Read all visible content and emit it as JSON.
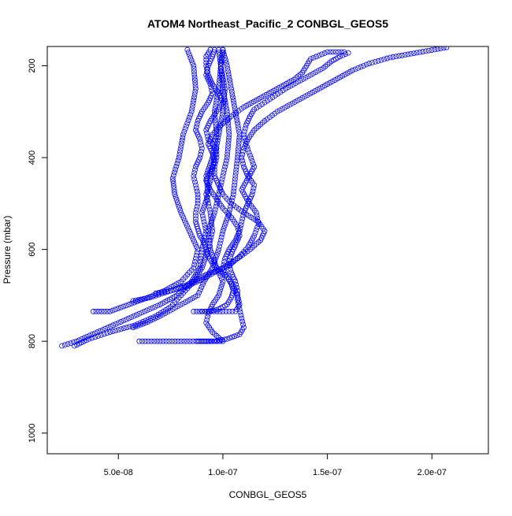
{
  "chart_data": {
    "type": "scatter",
    "title": "ATOM4 Northeast_Pacific_2 CONBGL_GEOS5",
    "xlabel": "CONBGL_GEOS5",
    "ylabel": "Pressure (mbar)",
    "xlim": [
      1.6e-08,
      2.27e-07
    ],
    "ylim": [
      1045,
      158
    ],
    "y_reversed": true,
    "grid": false,
    "point_color": "#0000ff",
    "x_ticks": [
      {
        "value": 5e-08,
        "label": "5.0e-08"
      },
      {
        "value": 1e-07,
        "label": "1.0e-07"
      },
      {
        "value": 1.5e-07,
        "label": "1.5e-07"
      },
      {
        "value": 2e-07,
        "label": "2.0e-07"
      }
    ],
    "y_ticks": [
      {
        "value": 200,
        "label": "200"
      },
      {
        "value": 400,
        "label": "400"
      },
      {
        "value": 600,
        "label": "600"
      },
      {
        "value": 800,
        "label": "800"
      },
      {
        "value": 1000,
        "label": "1000"
      }
    ],
    "series": [
      {
        "points": [
          [
            2.3e-08,
            810
          ],
          [
            3e-08,
            800
          ],
          [
            4e-08,
            780
          ],
          [
            5e-08,
            760
          ],
          [
            6e-08,
            740
          ],
          [
            7e-08,
            720
          ],
          [
            7.8e-08,
            700
          ],
          [
            8.5e-08,
            670
          ],
          [
            8.9e-08,
            640
          ],
          [
            9e-08,
            600
          ],
          [
            9.2e-08,
            560
          ],
          [
            9e-08,
            520
          ],
          [
            9.3e-08,
            480
          ],
          [
            9.2e-08,
            440
          ],
          [
            9.5e-08,
            400
          ],
          [
            9.7e-08,
            350
          ],
          [
            9.6e-08,
            300
          ],
          [
            9.8e-08,
            250
          ],
          [
            9.9e-08,
            200
          ],
          [
            1e-07,
            165
          ]
        ]
      },
      {
        "points": [
          [
            3.8e-08,
            735
          ],
          [
            4.6e-08,
            735
          ],
          [
            5.5e-08,
            720
          ],
          [
            6.4e-08,
            705
          ],
          [
            7.2e-08,
            690
          ],
          [
            8e-08,
            670
          ],
          [
            8.6e-08,
            640
          ],
          [
            8.8e-08,
            600
          ],
          [
            8.4e-08,
            560
          ],
          [
            8e-08,
            520
          ],
          [
            7.7e-08,
            480
          ],
          [
            7.6e-08,
            445
          ],
          [
            7.9e-08,
            400
          ],
          [
            8.1e-08,
            350
          ],
          [
            8.5e-08,
            300
          ],
          [
            8.7e-08,
            250
          ],
          [
            8.6e-08,
            200
          ],
          [
            8.3e-08,
            165
          ]
        ]
      },
      {
        "points": [
          [
            2.9e-08,
            810
          ],
          [
            3.6e-08,
            795
          ],
          [
            4.6e-08,
            780
          ],
          [
            5.8e-08,
            765
          ],
          [
            6.8e-08,
            745
          ],
          [
            7.5e-08,
            725
          ],
          [
            8e-08,
            700
          ],
          [
            8.6e-08,
            670
          ],
          [
            9e-08,
            640
          ],
          [
            9.3e-08,
            600
          ],
          [
            9.5e-08,
            560
          ],
          [
            9.4e-08,
            520
          ],
          [
            9.2e-08,
            480
          ],
          [
            9.4e-08,
            450
          ],
          [
            9.6e-08,
            400
          ],
          [
            9.8e-08,
            350
          ],
          [
            1e-07,
            300
          ],
          [
            1.01e-07,
            250
          ],
          [
            9.9e-08,
            200
          ],
          [
            9.8e-08,
            165
          ]
        ]
      },
      {
        "points": [
          [
            6e-08,
            800
          ],
          [
            7e-08,
            800
          ],
          [
            8e-08,
            800
          ],
          [
            9e-08,
            800
          ],
          [
            1e-07,
            800
          ],
          [
            9.5e-08,
            780
          ],
          [
            9.2e-08,
            760
          ],
          [
            9.3e-08,
            740
          ],
          [
            9.5e-08,
            720
          ],
          [
            9.8e-08,
            700
          ],
          [
            1e-07,
            670
          ],
          [
            9.7e-08,
            640
          ],
          [
            9.4e-08,
            600
          ],
          [
            9.3e-08,
            560
          ],
          [
            9.6e-08,
            520
          ],
          [
            9.8e-08,
            480
          ],
          [
            1e-07,
            440
          ],
          [
            1.02e-07,
            400
          ],
          [
            1.03e-07,
            350
          ],
          [
            1.02e-07,
            300
          ],
          [
            1e-07,
            250
          ],
          [
            9.9e-08,
            200
          ],
          [
            1e-07,
            165
          ]
        ]
      },
      {
        "points": [
          [
            5.7e-08,
            770
          ],
          [
            6.3e-08,
            760
          ],
          [
            7e-08,
            745
          ],
          [
            7.6e-08,
            730
          ],
          [
            8.2e-08,
            715
          ],
          [
            8.8e-08,
            700
          ],
          [
            9.1e-08,
            670
          ],
          [
            9.5e-08,
            640
          ],
          [
            9.8e-08,
            600
          ],
          [
            1e-07,
            560
          ],
          [
            1.03e-07,
            520
          ],
          [
            1.05e-07,
            480
          ],
          [
            1.06e-07,
            440
          ],
          [
            1.07e-07,
            400
          ],
          [
            1.08e-07,
            350
          ],
          [
            1.06e-07,
            300
          ],
          [
            1.04e-07,
            250
          ],
          [
            1.02e-07,
            200
          ],
          [
            1e-07,
            165
          ]
        ]
      },
      {
        "points": [
          [
            5.7e-08,
            712
          ],
          [
            6.5e-08,
            705
          ],
          [
            7.5e-08,
            690
          ],
          [
            8.4e-08,
            675
          ],
          [
            9.2e-08,
            655
          ],
          [
            1e-07,
            640
          ],
          [
            1.07e-07,
            620
          ],
          [
            1.13e-07,
            600
          ],
          [
            1.18e-07,
            580
          ],
          [
            1.2e-07,
            560
          ],
          [
            1.17e-07,
            540
          ],
          [
            1.1e-07,
            520
          ],
          [
            1.04e-07,
            500
          ],
          [
            1e-07,
            480
          ],
          [
            9.8e-08,
            460
          ],
          [
            9.6e-08,
            440
          ],
          [
            9.6e-08,
            420
          ],
          [
            9.7e-08,
            400
          ],
          [
            9.7e-08,
            380
          ],
          [
            9.3e-08,
            360
          ],
          [
            9.2e-08,
            340
          ],
          [
            9.4e-08,
            320
          ],
          [
            9.7e-08,
            300
          ],
          [
            1e-07,
            280
          ],
          [
            9.8e-08,
            260
          ],
          [
            9.5e-08,
            240
          ],
          [
            9.3e-08,
            220
          ],
          [
            9.2e-08,
            200
          ],
          [
            9.2e-08,
            180
          ],
          [
            9.4e-08,
            165
          ]
        ]
      },
      {
        "points": [
          [
            6.8e-08,
            695
          ],
          [
            7.5e-08,
            690
          ],
          [
            8.3e-08,
            680
          ],
          [
            9e-08,
            665
          ],
          [
            9.6e-08,
            650
          ],
          [
            1.03e-07,
            635
          ],
          [
            1.08e-07,
            615
          ],
          [
            1.12e-07,
            595
          ],
          [
            1.15e-07,
            570
          ],
          [
            1.17e-07,
            545
          ],
          [
            1.16e-07,
            520
          ],
          [
            1.12e-07,
            495
          ],
          [
            1.09e-07,
            470
          ],
          [
            1.12e-07,
            445
          ],
          [
            1.15e-07,
            420
          ],
          [
            1.13e-07,
            395
          ],
          [
            1.11e-07,
            370
          ],
          [
            1.1e-07,
            350
          ],
          [
            1.11e-07,
            330
          ],
          [
            1.13e-07,
            310
          ],
          [
            1.15e-07,
            295
          ],
          [
            1.2e-07,
            280
          ],
          [
            1.25e-07,
            265
          ],
          [
            1.3e-07,
            250
          ],
          [
            1.36e-07,
            235
          ],
          [
            1.42e-07,
            220
          ],
          [
            1.48e-07,
            205
          ],
          [
            1.52e-07,
            190
          ],
          [
            1.56e-07,
            180
          ],
          [
            1.6e-07,
            172
          ]
        ]
      },
      {
        "points": [
          [
            9e-08,
            735
          ],
          [
            1e-07,
            735
          ],
          [
            1.06e-07,
            735
          ],
          [
            1.08e-07,
            720
          ],
          [
            1.07e-07,
            700
          ],
          [
            1.05e-07,
            680
          ],
          [
            1.02e-07,
            660
          ],
          [
            1e-07,
            640
          ],
          [
            1.01e-07,
            620
          ],
          [
            1.03e-07,
            600
          ],
          [
            1.06e-07,
            580
          ],
          [
            1.08e-07,
            560
          ],
          [
            1.09e-07,
            540
          ],
          [
            1.1e-07,
            520
          ],
          [
            1.12e-07,
            500
          ],
          [
            1.14e-07,
            480
          ],
          [
            1.15e-07,
            460
          ],
          [
            1.12e-07,
            440
          ],
          [
            1.1e-07,
            420
          ],
          [
            1.09e-07,
            400
          ],
          [
            1.1e-07,
            380
          ],
          [
            1.12e-07,
            360
          ],
          [
            1.15e-07,
            340
          ],
          [
            1.2e-07,
            320
          ],
          [
            1.26e-07,
            300
          ],
          [
            1.32e-07,
            285
          ],
          [
            1.38e-07,
            270
          ],
          [
            1.44e-07,
            255
          ],
          [
            1.5e-07,
            240
          ],
          [
            1.56e-07,
            225
          ],
          [
            1.62e-07,
            210
          ],
          [
            1.7e-07,
            195
          ],
          [
            1.8e-07,
            182
          ],
          [
            2.07e-07,
            160
          ]
        ]
      },
      {
        "points": [
          [
            8.8e-08,
            800
          ],
          [
            9.6e-08,
            800
          ],
          [
            1.02e-07,
            795
          ],
          [
            1.08e-07,
            785
          ],
          [
            1.1e-07,
            770
          ],
          [
            1.09e-07,
            750
          ],
          [
            1.08e-07,
            730
          ],
          [
            1.07e-07,
            710
          ],
          [
            1.07e-07,
            690
          ],
          [
            1.06e-07,
            670
          ],
          [
            1.04e-07,
            650
          ],
          [
            1.03e-07,
            630
          ],
          [
            1.04e-07,
            610
          ],
          [
            1.06e-07,
            590
          ],
          [
            1.08e-07,
            570
          ],
          [
            1.07e-07,
            550
          ],
          [
            1.04e-07,
            530
          ],
          [
            1e-07,
            510
          ],
          [
            9.7e-08,
            490
          ],
          [
            9.4e-08,
            470
          ],
          [
            9.2e-08,
            450
          ],
          [
            9.4e-08,
            430
          ],
          [
            9.6e-08,
            410
          ],
          [
            9.5e-08,
            390
          ],
          [
            9.3e-08,
            370
          ],
          [
            9.5e-08,
            350
          ],
          [
            9.9e-08,
            330
          ],
          [
            1.04e-07,
            310
          ],
          [
            1.1e-07,
            290
          ],
          [
            1.16e-07,
            275
          ],
          [
            1.22e-07,
            260
          ],
          [
            1.28e-07,
            245
          ],
          [
            1.34e-07,
            230
          ],
          [
            1.38e-07,
            215
          ],
          [
            1.4e-07,
            200
          ],
          [
            1.42e-07,
            185
          ],
          [
            1.5e-07,
            170
          ],
          [
            1.58e-07,
            170
          ]
        ]
      },
      {
        "points": [
          [
            8.6e-08,
            735
          ],
          [
            9.3e-08,
            735
          ],
          [
            9.8e-08,
            730
          ],
          [
            1.02e-07,
            720
          ],
          [
            1.04e-07,
            705
          ],
          [
            1.05e-07,
            690
          ],
          [
            1.04e-07,
            675
          ],
          [
            1.02e-07,
            660
          ],
          [
            9.8e-08,
            645
          ],
          [
            9.5e-08,
            630
          ],
          [
            9.3e-08,
            615
          ],
          [
            9.2e-08,
            600
          ],
          [
            9.1e-08,
            585
          ],
          [
            8.9e-08,
            570
          ],
          [
            8.8e-08,
            555
          ],
          [
            8.7e-08,
            540
          ],
          [
            8.7e-08,
            520
          ],
          [
            8.8e-08,
            500
          ],
          [
            8.8e-08,
            480
          ],
          [
            8.7e-08,
            460
          ],
          [
            8.6e-08,
            440
          ],
          [
            8.7e-08,
            420
          ],
          [
            8.9e-08,
            400
          ],
          [
            9e-08,
            380
          ],
          [
            8.9e-08,
            360
          ],
          [
            8.7e-08,
            340
          ],
          [
            8.8e-08,
            320
          ],
          [
            9e-08,
            300
          ],
          [
            9.3e-08,
            280
          ],
          [
            9.5e-08,
            260
          ],
          [
            9.4e-08,
            240
          ],
          [
            9.2e-08,
            220
          ],
          [
            9.3e-08,
            200
          ],
          [
            9.5e-08,
            180
          ],
          [
            9.6e-08,
            165
          ]
        ]
      }
    ]
  }
}
